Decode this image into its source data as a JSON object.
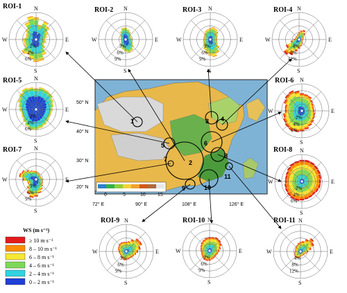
{
  "chart_data": {
    "type": "wind_rose_panel",
    "directions": [
      "N",
      "E",
      "S",
      "W"
    ],
    "speed_legend": {
      "title": "WS (m s⁻¹)",
      "bins": [
        {
          "label": "≥ 10 m s⁻¹",
          "color": "#e41a1c"
        },
        {
          "label": "8 – 10 m s⁻¹",
          "color": "#ff8c00"
        },
        {
          "label": "6 – 8 m s⁻¹",
          "color": "#f7e735"
        },
        {
          "label": "4 – 6 m s⁻¹",
          "color": "#7ed957"
        },
        {
          "label": "2 – 4 m s⁻¹",
          "color": "#2fd4e0"
        },
        {
          "label": "0 – 2 m s⁻¹",
          "color": "#1f3fd8"
        }
      ]
    },
    "roses": [
      {
        "name": "ROI-1",
        "ring_labels": [
          "2%",
          "4%",
          "6%"
        ],
        "ring_step": 2,
        "petals": [
          6.5,
          4.4,
          5.8,
          5.0,
          3.8,
          3.2,
          2.6,
          3.0,
          2.6,
          3.4,
          5.0,
          6.4,
          6.6,
          5.8,
          5.0,
          5.4,
          3.8,
          3.6,
          3.8,
          3.0,
          3.3,
          4.0,
          5.6,
          7.0
        ],
        "mix": [
          0.35,
          0.3,
          0.22,
          0.1,
          0.03,
          0
        ]
      },
      {
        "name": "ROI-2",
        "ring_labels": [
          "3%",
          "6%",
          "9%"
        ],
        "ring_step": 3,
        "petals": [
          5.2,
          4.5,
          3.8,
          3.0,
          2.6,
          2.6,
          2.9,
          3.0,
          3.6,
          4.5,
          5.6,
          6.0,
          5.4,
          4.5,
          3.6,
          3.0,
          2.4,
          2.1,
          2.1,
          2.2,
          2.6,
          3.0,
          4.1,
          5.2
        ],
        "mix": [
          0.45,
          0.3,
          0.17,
          0.06,
          0.02,
          0
        ]
      },
      {
        "name": "ROI-3",
        "ring_labels": [
          "3%",
          "6%",
          "9%"
        ],
        "ring_step": 3,
        "petals": [
          5.0,
          5.5,
          5.2,
          4.5,
          3.7,
          3.1,
          2.8,
          3.1,
          3.7,
          5.2,
          6.7,
          7.8,
          7.1,
          6.2,
          5.0,
          4.1,
          3.5,
          3.0,
          2.7,
          2.8,
          3.1,
          3.6,
          4.2,
          4.6
        ],
        "mix": [
          0.3,
          0.3,
          0.24,
          0.12,
          0.04,
          0
        ]
      },
      {
        "name": "ROI-4",
        "ring_labels": [
          "4%",
          "8%",
          "12%"
        ],
        "ring_step": 4,
        "petals": [
          4.2,
          5.4,
          6.2,
          4.8,
          3.2,
          2.6,
          2.4,
          2.2,
          2.4,
          2.8,
          3.4,
          4.2,
          5.4,
          7.2,
          10.2,
          11.6,
          8.6,
          5.0,
          3.2,
          2.6,
          2.3,
          2.2,
          2.6,
          3.2
        ],
        "mix": [
          0.2,
          0.22,
          0.22,
          0.18,
          0.1,
          0.08
        ]
      },
      {
        "name": "ROI-5",
        "ring_labels": [
          "2%",
          "4%",
          "6%"
        ],
        "ring_step": 2,
        "petals": [
          6.2,
          6.6,
          6.4,
          6.2,
          5.6,
          5.2,
          4.8,
          4.6,
          4.6,
          4.8,
          5.2,
          5.6,
          6.0,
          6.1,
          5.6,
          5.0,
          4.6,
          4.4,
          4.8,
          5.2,
          5.8,
          6.4,
          7.0,
          6.6
        ],
        "mix": [
          0.6,
          0.25,
          0.1,
          0.04,
          0.01,
          0
        ]
      },
      {
        "name": "ROI-6",
        "ring_labels": [
          "2%",
          "4%",
          "6%"
        ],
        "ring_step": 2,
        "petals": [
          5.2,
          5.0,
          4.8,
          4.2,
          3.8,
          3.6,
          3.7,
          3.9,
          4.2,
          4.6,
          5.0,
          5.6,
          6.1,
          6.4,
          6.6,
          6.4,
          6.0,
          5.6,
          5.0,
          5.1,
          5.8,
          6.4,
          6.6,
          6.0
        ],
        "mix": [
          0.22,
          0.26,
          0.24,
          0.15,
          0.08,
          0.05
        ]
      },
      {
        "name": "ROI-7",
        "ring_labels": [
          "3%",
          "6%",
          "9%"
        ],
        "ring_step": 3,
        "petals": [
          3.6,
          3.2,
          2.8,
          2.4,
          2.4,
          2.5,
          2.8,
          3.1,
          3.4,
          4.0,
          5.0,
          6.2,
          7.6,
          8.3,
          7.1,
          5.3,
          4.0,
          4.0,
          5.8,
          7.6,
          7.0,
          5.5,
          4.4,
          3.9
        ],
        "mix": [
          0.35,
          0.28,
          0.18,
          0.1,
          0.05,
          0.04
        ]
      },
      {
        "name": "ROI-8",
        "ring_labels": [
          "2%",
          "4%",
          "6%"
        ],
        "ring_step": 2,
        "petals": [
          6.4,
          6.5,
          6.4,
          6.2,
          6.0,
          5.8,
          5.6,
          5.6,
          5.4,
          5.2,
          5.3,
          5.4,
          5.6,
          5.8,
          5.8,
          5.6,
          5.4,
          5.2,
          5.0,
          5.0,
          5.2,
          5.6,
          6.0,
          6.2
        ],
        "mix": [
          0.12,
          0.2,
          0.24,
          0.22,
          0.14,
          0.08
        ]
      },
      {
        "name": "ROI-9",
        "ring_labels": [
          "3%",
          "6%",
          "9%"
        ],
        "ring_step": 3,
        "petals": [
          4.2,
          4.6,
          5.8,
          7.4,
          7.6,
          6.4,
          5.2,
          4.4,
          3.8,
          3.6,
          3.4,
          3.6,
          3.8,
          4.0,
          3.6,
          3.2,
          3.0,
          3.1,
          3.4,
          3.8,
          4.0,
          4.4,
          4.5,
          4.3
        ],
        "mix": [
          0.18,
          0.24,
          0.25,
          0.18,
          0.1,
          0.05
        ]
      },
      {
        "name": "ROI-10",
        "ring_labels": [
          "3%",
          "6%",
          "9%"
        ],
        "ring_step": 3,
        "petals": [
          6.0,
          6.2,
          6.6,
          6.4,
          5.8,
          5.0,
          4.3,
          3.9,
          3.6,
          3.6,
          3.8,
          4.0,
          4.4,
          4.6,
          4.6,
          4.3,
          4.0,
          3.8,
          3.9,
          4.1,
          4.5,
          5.0,
          5.4,
          5.8
        ],
        "mix": [
          0.18,
          0.24,
          0.24,
          0.18,
          0.1,
          0.06
        ]
      },
      {
        "name": "ROI-11",
        "ring_labels": [
          "4%",
          "8%",
          "12%"
        ],
        "ring_step": 4,
        "petals": [
          5.6,
          6.2,
          8.0,
          10.0,
          8.8,
          6.4,
          4.6,
          3.6,
          3.0,
          2.8,
          2.7,
          2.8,
          3.2,
          3.8,
          4.4,
          4.6,
          4.2,
          3.6,
          3.2,
          3.2,
          3.4,
          3.8,
          4.2,
          5.0
        ],
        "mix": [
          0.16,
          0.22,
          0.24,
          0.2,
          0.12,
          0.06
        ]
      }
    ],
    "map": {
      "lat_labels": [
        "50° N",
        "40° N",
        "30° N",
        "20° N"
      ],
      "lon_labels": [
        "72° E",
        "90° E",
        "108° E",
        "126° E"
      ],
      "colorbar_ticks": [
        "0",
        "5",
        "10",
        "15"
      ],
      "colorbar_colors": [
        "#2f7fd0",
        "#35b04a",
        "#8fcf3c",
        "#f2d23a",
        "#f2a12e",
        "#d05a1c",
        "#b06a3a",
        "#e6e6e6"
      ],
      "region_labels": [
        "1",
        "2",
        "3",
        "4",
        "5",
        "6",
        "7",
        "8",
        "9",
        "10",
        "11"
      ]
    }
  }
}
